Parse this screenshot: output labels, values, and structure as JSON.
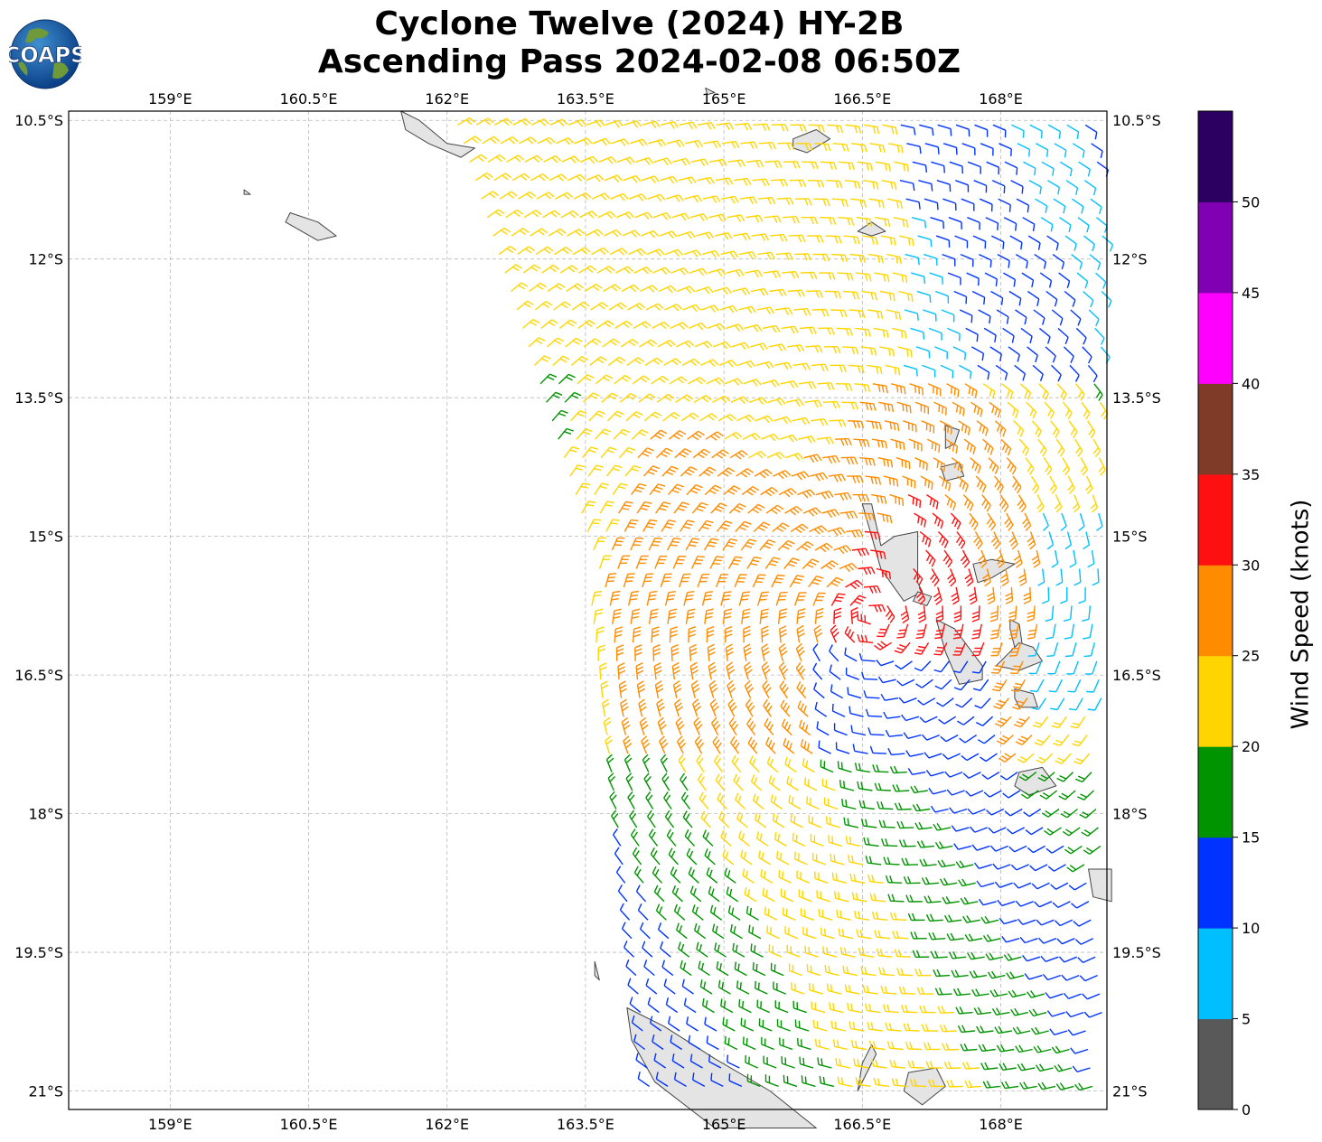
{
  "title": {
    "line1": "Cyclone Twelve (2024) HY-2B",
    "line2": "Ascending Pass 2024-02-08 06:50Z"
  },
  "logo": {
    "text": "COAPS",
    "icon": "globe-icon"
  },
  "map": {
    "lon_ticks": [
      "159°E",
      "160.5°E",
      "162°E",
      "163.5°E",
      "165°E",
      "166.5°E",
      "168°E"
    ],
    "lat_ticks": [
      "10.5°S",
      "12°S",
      "13.5°S",
      "15°S",
      "16.5°S",
      "18°S",
      "19.5°S",
      "21°S"
    ],
    "lon_range": [
      157.9,
      169.15
    ],
    "lat_range": [
      -21.2,
      -10.4
    ],
    "gridlines": true
  },
  "colorbar": {
    "label": "Wind Speed (knots)",
    "ticks": [
      "0",
      "5",
      "10",
      "15",
      "20",
      "25",
      "30",
      "35",
      "40",
      "45",
      "50"
    ],
    "bins": [
      {
        "min": 0,
        "max": 5,
        "color": "#595959"
      },
      {
        "min": 5,
        "max": 10,
        "color": "#00bfff"
      },
      {
        "min": 10,
        "max": 15,
        "color": "#0033ff"
      },
      {
        "min": 15,
        "max": 20,
        "color": "#009400"
      },
      {
        "min": 20,
        "max": 25,
        "color": "#ffd500"
      },
      {
        "min": 25,
        "max": 30,
        "color": "#ff8c00"
      },
      {
        "min": 30,
        "max": 35,
        "color": "#ff1010"
      },
      {
        "min": 35,
        "max": 40,
        "color": "#7f3b28"
      },
      {
        "min": 40,
        "max": 45,
        "color": "#ff00ff"
      },
      {
        "min": 45,
        "max": 50,
        "color": "#8000b4"
      },
      {
        "min": 50,
        "max": 55,
        "color": "#2b0060"
      }
    ]
  }
}
